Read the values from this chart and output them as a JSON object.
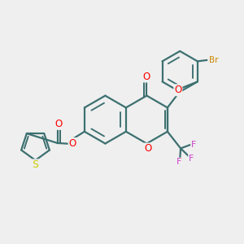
{
  "background_color": "#efefef",
  "bond_color": "#3d7070",
  "bond_width": 1.6,
  "O_color": "#ff0000",
  "S_color": "#cccc00",
  "F_color": "#cc44cc",
  "Br_color": "#cc8800",
  "figsize": [
    3.0,
    3.0
  ],
  "dpi": 100,
  "xlim": [
    0,
    10
  ],
  "ylim": [
    0,
    10
  ]
}
